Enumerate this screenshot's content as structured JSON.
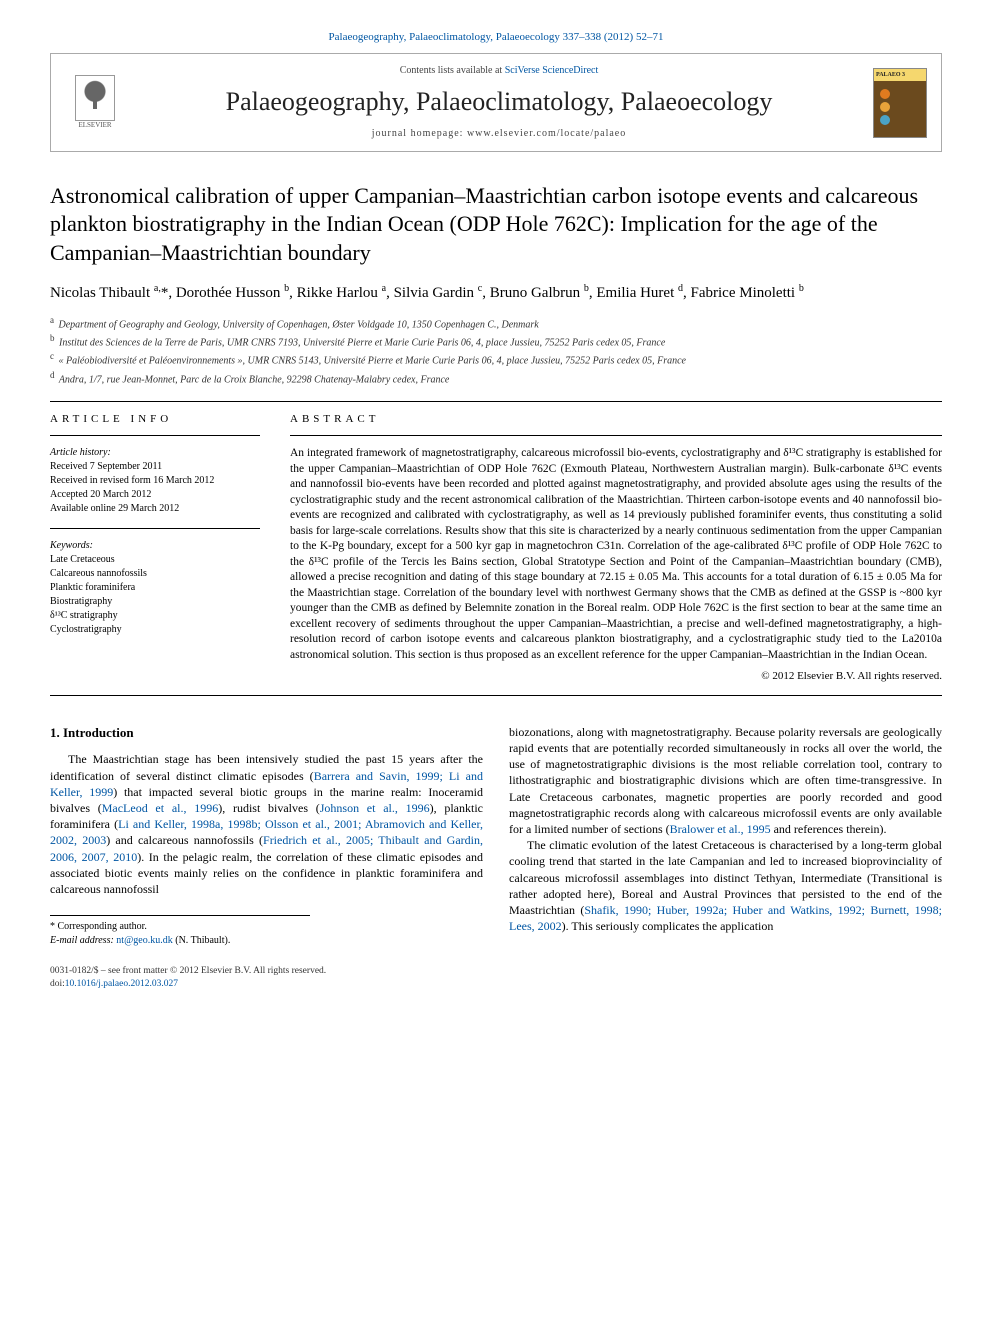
{
  "journal_ref_text": "Palaeogeography, Palaeoclimatology, Palaeoecology 337–338 (2012) 52–71",
  "header": {
    "contents_prefix": "Contents lists available at ",
    "contents_link": "SciVerse ScienceDirect",
    "journal_title": "Palaeogeography, Palaeoclimatology, Palaeoecology",
    "homepage_prefix": "journal homepage: ",
    "homepage_url": "www.elsevier.com/locate/palaeo",
    "elsevier_label": "ELSEVIER",
    "cover_dot_colors": [
      "#e07b1f",
      "#e8a33a",
      "#4aa3c7"
    ]
  },
  "title": "Astronomical calibration of upper Campanian–Maastrichtian carbon isotope events and calcareous plankton biostratigraphy in the Indian Ocean (ODP Hole 762C): Implication for the age of the Campanian–Maastrichtian boundary",
  "authors_html": "Nicolas Thibault <sup>a,</sup>*, Dorothée Husson <sup>b</sup>, Rikke Harlou <sup>a</sup>, Silvia Gardin <sup>c</sup>, Bruno Galbrun <sup>b</sup>, Emilia Huret <sup>d</sup>, Fabrice Minoletti <sup>b</sup>",
  "affiliations": [
    {
      "key": "a",
      "text": "Department of Geography and Geology, University of Copenhagen, Øster Voldgade 10, 1350 Copenhagen C., Denmark"
    },
    {
      "key": "b",
      "text": "Institut des Sciences de la Terre de Paris, UMR CNRS 7193, Université Pierre et Marie Curie Paris 06, 4, place Jussieu, 75252 Paris cedex 05, France"
    },
    {
      "key": "c",
      "text": "« Paléobiodiversité et Paléoenvironnements », UMR CNRS 5143, Université Pierre et Marie Curie Paris 06, 4, place Jussieu, 75252 Paris cedex 05, France"
    },
    {
      "key": "d",
      "text": "Andra, 1/7, rue Jean-Monnet, Parc de la Croix Blanche, 92298 Chatenay-Malabry cedex, France"
    }
  ],
  "article_info": {
    "heading": "article info",
    "history_label": "Article history:",
    "history": [
      "Received 7 September 2011",
      "Received in revised form 16 March 2012",
      "Accepted 20 March 2012",
      "Available online 29 March 2012"
    ],
    "keywords_label": "Keywords:",
    "keywords": [
      "Late Cretaceous",
      "Calcareous nannofossils",
      "Planktic foraminifera",
      "Biostratigraphy",
      "δ¹³C stratigraphy",
      "Cyclostratigraphy"
    ]
  },
  "abstract": {
    "heading": "abstract",
    "text": "An integrated framework of magnetostratigraphy, calcareous microfossil bio-events, cyclostratigraphy and δ¹³C stratigraphy is established for the upper Campanian–Maastrichtian of ODP Hole 762C (Exmouth Plateau, Northwestern Australian margin). Bulk-carbonate δ¹³C events and nannofossil bio-events have been recorded and plotted against magnetostratigraphy, and provided absolute ages using the results of the cyclostratigraphic study and the recent astronomical calibration of the Maastrichtian. Thirteen carbon-isotope events and 40 nannofossil bio-events are recognized and calibrated with cyclostratigraphy, as well as 14 previously published foraminifer events, thus constituting a solid basis for large-scale correlations. Results show that this site is characterized by a nearly continuous sedimentation from the upper Campanian to the K-Pg boundary, except for a 500 kyr gap in magnetochron C31n. Correlation of the age-calibrated δ¹³C profile of ODP Hole 762C to the δ¹³C profile of the Tercis les Bains section, Global Stratotype Section and Point of the Campanian–Maastrichtian boundary (CMB), allowed a precise recognition and dating of this stage boundary at 72.15 ± 0.05 Ma. This accounts for a total duration of 6.15 ± 0.05 Ma for the Maastrichtian stage. Correlation of the boundary level with northwest Germany shows that the CMB as defined at the GSSP is ~800 kyr younger than the CMB as defined by Belemnite zonation in the Boreal realm. ODP Hole 762C is the first section to bear at the same time an excellent recovery of sediments throughout the upper Campanian–Maastrichtian, a precise and well-defined magnetostratigraphy, a high-resolution record of carbon isotope events and calcareous plankton biostratigraphy, and a cyclostratigraphic study tied to the La2010a astronomical solution. This section is thus proposed as an excellent reference for the upper Campanian–Maastrichtian in the Indian Ocean.",
    "copyright": "© 2012 Elsevier B.V. All rights reserved."
  },
  "intro": {
    "heading": "1. Introduction",
    "para1_pre": "The Maastrichtian stage has been intensively studied the past 15 years after the identification of several distinct climatic episodes (",
    "ref1": "Barrera and Savin, 1999; Li and Keller, 1999",
    "para1_mid1": ") that impacted several biotic groups in the marine realm: Inoceramid bivalves (",
    "ref2": "MacLeod et al., 1996",
    "para1_mid2": "), rudist bivalves (",
    "ref3": "Johnson et al., 1996",
    "para1_mid3": "), planktic foraminifera (",
    "ref4": "Li and Keller, 1998a, 1998b; Olsson et al., 2001; Abramovich and Keller, 2002, 2003",
    "para1_mid4": ") and calcareous nannofossils (",
    "ref5": "Friedrich et al., 2005; Thibault and Gardin, 2006, 2007, 2010",
    "para1_end": "). In the pelagic realm, the correlation of these climatic episodes and associated biotic events mainly relies on the confidence in planktic foraminifera and calcareous nannofossil",
    "para2_pre": "biozonations, along with magnetostratigraphy. Because polarity reversals are geologically rapid events that are potentially recorded simultaneously in rocks all over the world, the use of magnetostratigraphic divisions is the most reliable correlation tool, contrary to lithostratigraphic and biostratigraphic divisions which are often time-transgressive. In Late Cretaceous carbonates, magnetic properties are poorly recorded and good magnetostratigraphic records along with calcareous microfossil events are only available for a limited number of sections (",
    "ref6": "Bralower et al., 1995",
    "para2_end": " and references therein).",
    "para3_pre": "The climatic evolution of the latest Cretaceous is characterised by a long-term global cooling trend that started in the late Campanian and led to increased bioprovinciality of calcareous microfossil assemblages into distinct Tethyan, Intermediate (Transitional is rather adopted here), Boreal and Austral Provinces that persisted to the end of the Maastrichtian (",
    "ref7": "Shafik, 1990; Huber, 1992a; Huber and Watkins, 1992; Burnett, 1998; Lees, 2002",
    "para3_end": "). This seriously complicates the application"
  },
  "footnote": {
    "corresponding": "* Corresponding author.",
    "email_label": "E-mail address: ",
    "email": "nt@geo.ku.dk",
    "email_name": " (N. Thibault)."
  },
  "footer": {
    "line1": "0031-0182/$ – see front matter © 2012 Elsevier B.V. All rights reserved.",
    "doi_label": "doi:",
    "doi": "10.1016/j.palaeo.2012.03.027"
  },
  "colors": {
    "link": "#0056a3",
    "text": "#000000",
    "rule": "#000000"
  }
}
